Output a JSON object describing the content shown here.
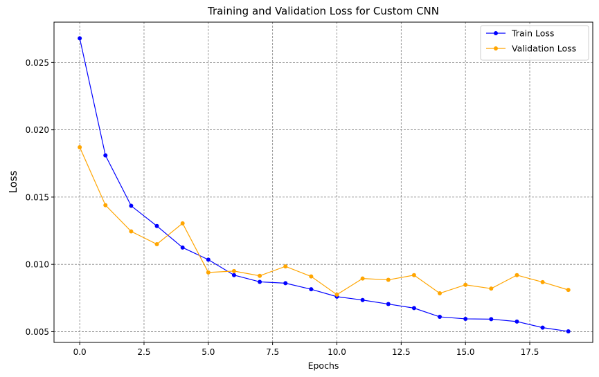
{
  "chart_data": {
    "type": "line",
    "title": "Training and Validation Loss for Custom CNN",
    "xlabel": "Epochs",
    "ylabel": "Loss",
    "x": [
      0,
      1,
      2,
      3,
      4,
      5,
      6,
      7,
      8,
      9,
      10,
      11,
      12,
      13,
      14,
      15,
      16,
      17,
      18,
      19
    ],
    "xlim": [
      -1.0,
      19.95
    ],
    "ylim": [
      0.0042,
      0.028
    ],
    "xticks": [
      0.0,
      2.5,
      5.0,
      7.5,
      10.0,
      12.5,
      15.0,
      17.5
    ],
    "xtick_labels": [
      "0.0",
      "2.5",
      "5.0",
      "7.5",
      "10.0",
      "12.5",
      "15.0",
      "17.5"
    ],
    "yticks": [
      0.005,
      0.01,
      0.015,
      0.02,
      0.025
    ],
    "ytick_labels": [
      "0.005",
      "0.010",
      "0.015",
      "0.020",
      "0.025"
    ],
    "grid": true,
    "legend_position": "top-right",
    "series": [
      {
        "name": "Train Loss",
        "color": "#0000ff",
        "values": [
          0.0268,
          0.0181,
          0.01435,
          0.01285,
          0.01125,
          0.01035,
          0.0092,
          0.0087,
          0.0086,
          0.00815,
          0.0076,
          0.00735,
          0.00705,
          0.00675,
          0.0061,
          0.00595,
          0.00593,
          0.00575,
          0.0053,
          0.00502
        ]
      },
      {
        "name": "Validation Loss",
        "color": "#ffa500",
        "values": [
          0.0187,
          0.0144,
          0.01245,
          0.0115,
          0.01305,
          0.0094,
          0.0095,
          0.00915,
          0.00985,
          0.0091,
          0.00775,
          0.00895,
          0.00885,
          0.0092,
          0.00785,
          0.00848,
          0.0082,
          0.0092,
          0.00868,
          0.0081
        ]
      }
    ]
  }
}
